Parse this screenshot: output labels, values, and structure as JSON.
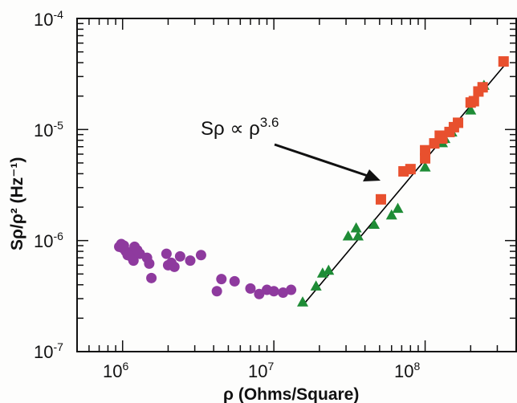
{
  "chart_data": {
    "type": "scatter",
    "xscale": "log",
    "yscale": "log",
    "xlim": [
      500000,
      400000000
    ],
    "ylim": [
      1e-07,
      0.0001
    ],
    "xlabel": "ρ (Ohms/Square)",
    "ylabel": "Sρ/ρ² (Hz⁻¹)",
    "x_ticks": [
      {
        "base": "10",
        "exp": "6"
      },
      {
        "base": "10",
        "exp": "7"
      },
      {
        "base": "10",
        "exp": "8"
      }
    ],
    "y_ticks": [
      {
        "base": "10",
        "exp": "-7"
      },
      {
        "base": "10",
        "exp": "-6"
      },
      {
        "base": "10",
        "exp": "-5"
      },
      {
        "base": "10",
        "exp": "-4"
      }
    ],
    "grid": false,
    "annotation": {
      "text_base": "Sρ ∝ ρ",
      "text_exp": "3.6"
    },
    "series": [
      {
        "marker": "circle",
        "color": "#8e3a9e",
        "points": [
          [
            950000,
            8.8e-07
          ],
          [
            980000,
            9.3e-07
          ],
          [
            1000000,
            8.6e-07
          ],
          [
            1020000,
            9e-07
          ],
          [
            1050000,
            8e-07
          ],
          [
            1080000,
            7.4e-07
          ],
          [
            1120000,
            7.8e-07
          ],
          [
            1150000,
            7.1e-07
          ],
          [
            1180000,
            6.6e-07
          ],
          [
            1200000,
            8.8e-07
          ],
          [
            1250000,
            8.2e-07
          ],
          [
            1300000,
            7.6e-07
          ],
          [
            1450000,
            7e-07
          ],
          [
            1500000,
            6.2e-07
          ],
          [
            1550000,
            4.6e-07
          ],
          [
            1950000,
            7.6e-07
          ],
          [
            2000000,
            6e-07
          ],
          [
            2100000,
            6.3e-07
          ],
          [
            2200000,
            5.8e-07
          ],
          [
            2400000,
            7.2e-07
          ],
          [
            2800000,
            6.6e-07
          ],
          [
            3300000,
            7.4e-07
          ],
          [
            4200000,
            3.5e-07
          ],
          [
            4500000,
            4.5e-07
          ],
          [
            5500000,
            4.3e-07
          ],
          [
            7000000,
            3.7e-07
          ],
          [
            8000000,
            3.3e-07
          ],
          [
            9000000,
            3.6e-07
          ],
          [
            10000000,
            3.5e-07
          ],
          [
            11500000,
            3.4e-07
          ],
          [
            13000000,
            3.6e-07
          ]
        ]
      },
      {
        "marker": "triangle",
        "color": "#1e8c36",
        "points": [
          [
            15500000,
            2.8e-07
          ],
          [
            19000000,
            3.9e-07
          ],
          [
            21000000,
            5.1e-07
          ],
          [
            23000000,
            5.4e-07
          ],
          [
            31000000,
            1.1e-06
          ],
          [
            35000000,
            1.3e-06
          ],
          [
            36000000,
            1.1e-06
          ],
          [
            46000000,
            1.4e-06
          ],
          [
            60000000,
            1.7e-06
          ],
          [
            66000000,
            1.95e-06
          ],
          [
            100000000,
            4.6e-06
          ],
          [
            130000000,
            7.6e-06
          ],
          [
            135000000,
            8.3e-06
          ],
          [
            150000000,
            9.5e-06
          ],
          [
            200000000,
            1.5e-05
          ],
          [
            245000000,
            2.5e-05
          ]
        ]
      },
      {
        "marker": "square",
        "color": "#e8502e",
        "points": [
          [
            51000000,
            2.35e-06
          ],
          [
            72000000,
            4.2e-06
          ],
          [
            80000000,
            4.4e-06
          ],
          [
            100000000,
            5.5e-06
          ],
          [
            100000000,
            6.5e-06
          ],
          [
            115000000,
            7.5e-06
          ],
          [
            125000000,
            8.8e-06
          ],
          [
            130000000,
            8.3e-06
          ],
          [
            145000000,
            9.5e-06
          ],
          [
            155000000,
            1.05e-05
          ],
          [
            165000000,
            1.15e-05
          ],
          [
            200000000,
            1.75e-05
          ],
          [
            210000000,
            1.8e-05
          ],
          [
            225000000,
            2.2e-05
          ],
          [
            240000000,
            2.4e-05
          ],
          [
            330000000,
            4.1e-05
          ]
        ]
      }
    ],
    "fit_line": {
      "from": [
        15500000,
        2.6e-07
      ],
      "to": [
        330000000,
        3.7e-05
      ]
    }
  }
}
